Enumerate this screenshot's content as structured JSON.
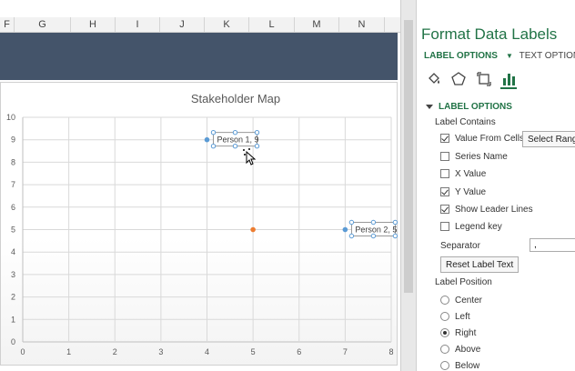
{
  "sheet": {
    "columns": [
      "F",
      "G",
      "H",
      "I",
      "J",
      "K",
      "L",
      "M",
      "N"
    ]
  },
  "chart_data": {
    "type": "scatter",
    "title": "Stakeholder Map",
    "xlim": [
      0,
      8
    ],
    "ylim": [
      0,
      10
    ],
    "x_ticks": [
      "0",
      "1",
      "2",
      "3",
      "4",
      "5",
      "6",
      "7",
      "8"
    ],
    "y_ticks": [
      "0",
      "1",
      "2",
      "3",
      "4",
      "5",
      "6",
      "7",
      "8",
      "9",
      "10"
    ],
    "grid": true,
    "series": [
      {
        "points": [
          {
            "x": 4,
            "y": 9,
            "label": "Person 1, 9",
            "color": "#5b9bd5"
          },
          {
            "x": 7,
            "y": 5,
            "label": "Person 2, 5",
            "color": "#5b9bd5"
          },
          {
            "x": 5,
            "y": 5,
            "label": "",
            "color": "#ed7d31"
          }
        ]
      }
    ]
  },
  "pane": {
    "title": "Format Data Labels",
    "tab_label_options": "LABEL OPTIONS",
    "tab_text_options": "TEXT OPTIONS",
    "icons": [
      "paint-bucket-icon",
      "pentagon-icon",
      "size-properties-icon",
      "bar-chart-icon"
    ],
    "section_title": "LABEL OPTIONS",
    "label_contains_heading": "Label Contains",
    "checkboxes": [
      {
        "label": "Value From Cells",
        "checked": true
      },
      {
        "label": "Series Name",
        "checked": false
      },
      {
        "label": "X Value",
        "checked": false
      },
      {
        "label": "Y Value",
        "checked": true
      },
      {
        "label": "Show Leader Lines",
        "checked": true
      },
      {
        "label": "Legend key",
        "checked": false
      }
    ],
    "select_range_label": "Select Range...",
    "separator_label": "Separator",
    "separator_value": ",",
    "reset_button": "Reset Label Text",
    "label_position_heading": "Label Position",
    "positions": [
      {
        "label": "Center",
        "selected": false
      },
      {
        "label": "Left",
        "selected": false
      },
      {
        "label": "Right",
        "selected": true
      },
      {
        "label": "Above",
        "selected": false
      },
      {
        "label": "Below",
        "selected": false
      }
    ],
    "accent": "#217346"
  }
}
